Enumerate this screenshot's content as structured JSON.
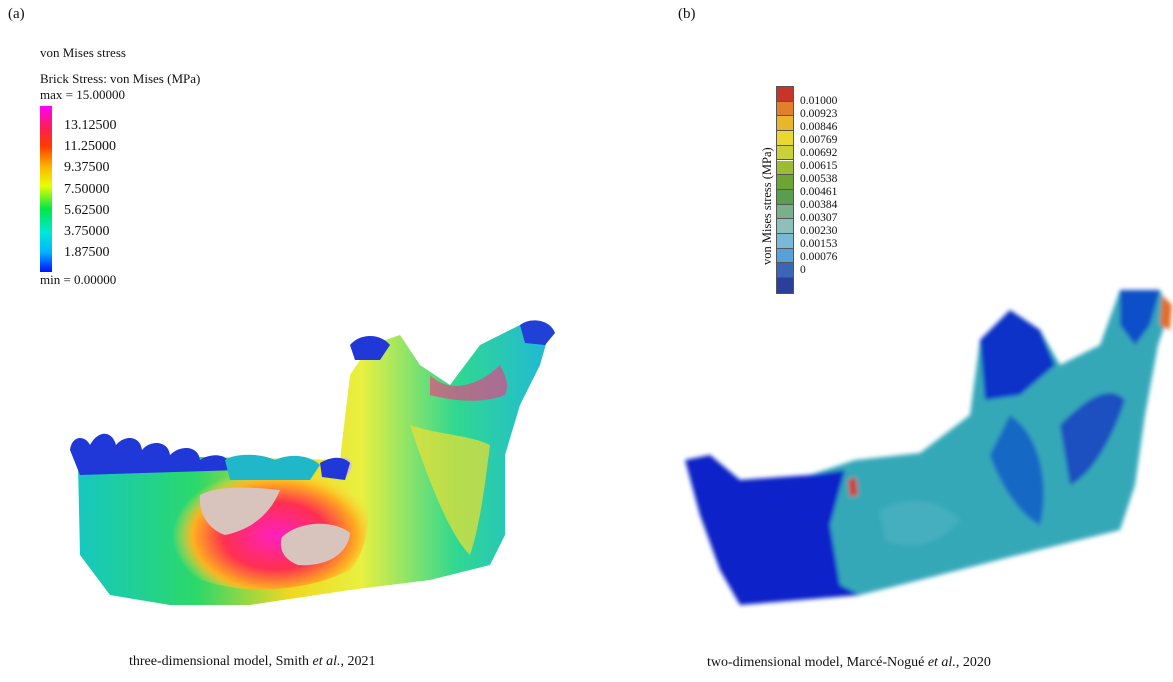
{
  "panel_a": {
    "label": "(a)",
    "legend": {
      "heading": "von Mises stress",
      "subheading": "Brick Stress: von Mises (MPa)",
      "max_label": "max = 15.00000",
      "min_label": "min = 0.00000",
      "ticks": [
        "13.12500",
        "11.25000",
        "9.37500",
        "7.50000",
        "5.62500",
        "3.75000",
        "1.87500"
      ]
    },
    "caption_prefix": "three-dimensional model, Smith ",
    "caption_italic": "et al.",
    "caption_suffix": ", 2021"
  },
  "panel_b": {
    "label": "(b)",
    "legend": {
      "axis_label": "von Mises stress (MPa)",
      "ticks": [
        "0.01000",
        "0.00923",
        "0.00846",
        "0.00769",
        "0.00692",
        "0.00615",
        "0.00538",
        "0.00461",
        "0.00384",
        "0.00307",
        "0.00230",
        "0.00153",
        "0.00076",
        "0"
      ],
      "colors": [
        "#c8342a",
        "#e0802a",
        "#e8b628",
        "#e8d830",
        "#c8d236",
        "#9cbc34",
        "#6ea432",
        "#5c9c50",
        "#78b08c",
        "#8cc0b8",
        "#7ab8d8",
        "#5aa0d8",
        "#3a66b8",
        "#2a3e9c"
      ]
    },
    "caption_prefix": "two-dimensional model, Marcé-Nogué ",
    "caption_italic": "et al.",
    "caption_suffix": ", 2020"
  }
}
